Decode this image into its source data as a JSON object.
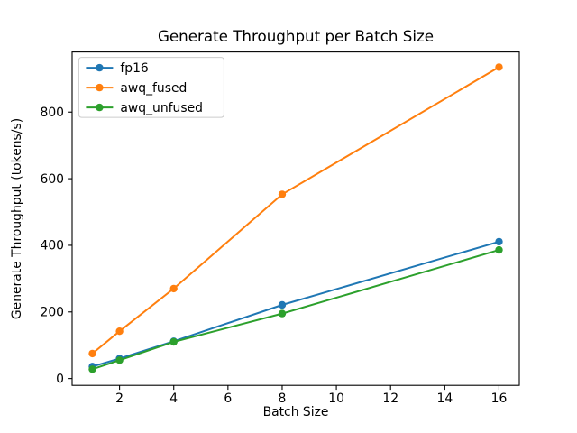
{
  "chart_data": {
    "type": "line",
    "title": "Generate Throughput per Batch Size",
    "xlabel": "Batch Size",
    "ylabel": "Generate Throughput (tokens/s)",
    "x": [
      1,
      2,
      4,
      8,
      16
    ],
    "series": [
      {
        "name": "fp16",
        "color": "#1f77b4",
        "values": [
          36,
          60,
          112,
          221,
          411
        ]
      },
      {
        "name": "awq_fused",
        "color": "#ff7f0e",
        "values": [
          75,
          142,
          270,
          553,
          935
        ]
      },
      {
        "name": "awq_unfused",
        "color": "#2ca02c",
        "values": [
          28,
          55,
          110,
          195,
          386
        ]
      }
    ],
    "xticks": [
      2,
      4,
      6,
      8,
      10,
      12,
      14,
      16
    ],
    "yticks": [
      0,
      200,
      400,
      600,
      800
    ],
    "xlim": [
      0.25,
      16.75
    ],
    "ylim": [
      -20.5,
      980.5
    ],
    "grid": false,
    "legend_position": "upper left",
    "legend_entries": [
      "fp16",
      "awq_fused",
      "awq_unfused"
    ],
    "marker": "o",
    "background_color": "#ffffff",
    "axis_color": "#000000",
    "legend_border_color": "#cccccc"
  }
}
